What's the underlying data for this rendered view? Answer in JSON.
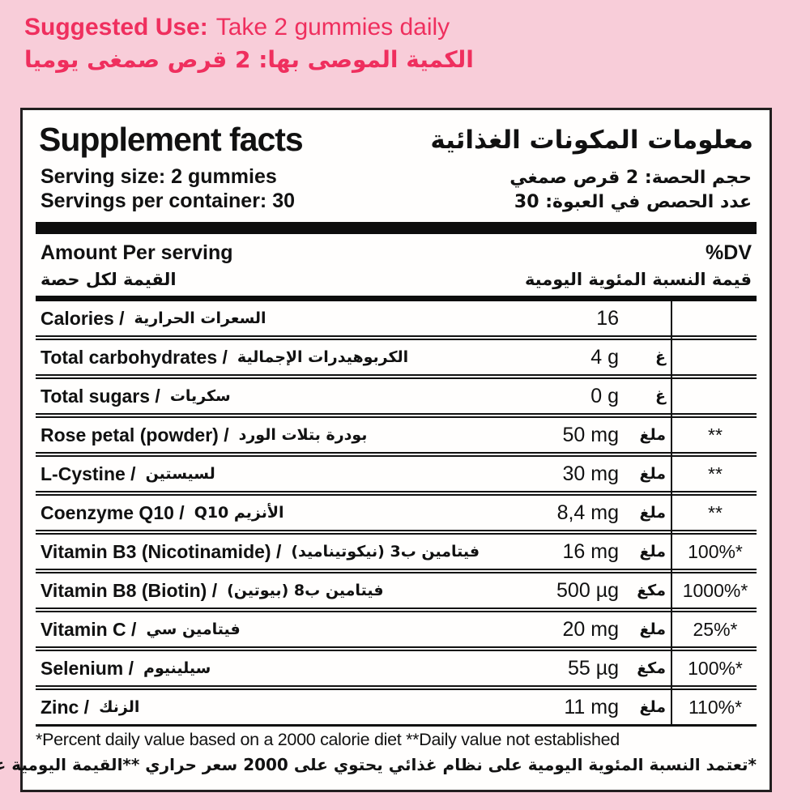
{
  "colors": {
    "background": "#f8cdd9",
    "accent_pink": "#ef2f5e",
    "panel_bg": "#fffefd",
    "ink": "#111111"
  },
  "suggested_use": {
    "label_en": "Suggested Use:",
    "text_en": "Take 2 gummies daily",
    "label_ar": "الكمية الموصى بها:",
    "text_ar": "2 قرص صمغى يوميا"
  },
  "panel": {
    "title_en": "Supplement facts",
    "title_ar": "معلومات المكونات الغذائية",
    "serving_size_en": "Serving size: 2  gummies",
    "serving_size_ar": "حجم الحصة: 2 قرص صمغي",
    "servings_per_container_en": "Servings per container: 30",
    "servings_per_container_ar": "عدد الحصص في العبوة: 30",
    "amount_header_en": "Amount Per serving",
    "amount_header_ar": "القيمة لكل حصة",
    "dv_header_en": "%DV",
    "dv_header_ar": "قيمة النسبة المئوية اليومية",
    "rows": [
      {
        "en": "Calories /",
        "ar": "السعرات الحرارية",
        "value": "16",
        "unit_ar": "",
        "dv": ""
      },
      {
        "en": "Total carbohydrates /",
        "ar": "الكربوهيدرات الإجمالية",
        "value": "4 g",
        "unit_ar": "غ",
        "dv": ""
      },
      {
        "en": "Total sugars /",
        "ar": "سكريات",
        "value": "0 g",
        "unit_ar": "غ",
        "dv": ""
      },
      {
        "en": "Rose petal (powder) /",
        "ar": "بودرة بتلات الورد",
        "value": "50 mg",
        "unit_ar": "ملغ",
        "dv": "**"
      },
      {
        "en": "L-Cystine /",
        "ar": "لسيستين",
        "value": "30 mg",
        "unit_ar": "ملغ",
        "dv": "**"
      },
      {
        "en": "Coenzyme Q10 /",
        "ar": "الأنزيم Q10",
        "value": "8,4 mg",
        "unit_ar": "ملغ",
        "dv": "**"
      },
      {
        "en": "Vitamin B3  (Nicotinamide)  /",
        "ar": "فيتامين ب3 (نيكوتيناميد)",
        "value": "16 mg",
        "unit_ar": "ملغ",
        "dv": "100%*"
      },
      {
        "en": "Vitamin B8 (Biotin) /",
        "ar": "فيتامين ب8 (بيوتين)",
        "value": "500 µg",
        "unit_ar": "مكغ",
        "dv": "1000%*"
      },
      {
        "en": "Vitamin C /",
        "ar": "فيتامين سي",
        "value": "20 mg",
        "unit_ar": "ملغ",
        "dv": "25%*"
      },
      {
        "en": "Selenium /",
        "ar": "سيلينيوم",
        "value": "55 µg",
        "unit_ar": "مكغ",
        "dv": "100%*"
      },
      {
        "en": "Zinc /",
        "ar": "الزنك",
        "value": "11 mg",
        "unit_ar": "ملغ",
        "dv": "110%*"
      }
    ],
    "footnote_en": "*Percent daily value based on a 2000 calorie diet  **Daily value not established",
    "footnote_ar": "*تعتمد النسبة المئوية اليومية على نظام غذائي يحتوي على 2000 سعر حراري **القيمة اليومية غير متأسسة"
  }
}
